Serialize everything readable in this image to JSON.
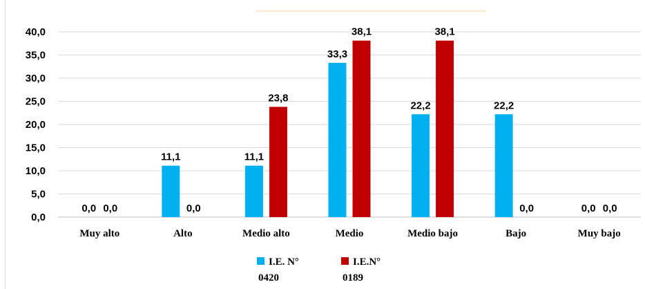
{
  "chart_data": {
    "type": "bar",
    "categories": [
      "Muy alto",
      "Alto",
      "Medio alto",
      "Medio",
      "Medio bajo",
      "Bajo",
      "Muy bajo"
    ],
    "series": [
      {
        "name": "I.E. N° 0420",
        "legend_lines": [
          "I.E. N°",
          "0420"
        ],
        "color": "#00b0f0",
        "values": [
          0.0,
          11.1,
          11.1,
          33.3,
          22.2,
          22.2,
          0.0
        ],
        "labels": [
          "0,0",
          "11,1",
          "11,1",
          "33,3",
          "22,2",
          "22,2",
          "0,0"
        ]
      },
      {
        "name": "I.E.N° 0189",
        "legend_lines": [
          "I.E.N°",
          "0189"
        ],
        "color": "#c00000",
        "values": [
          0.0,
          0.0,
          23.8,
          38.1,
          38.1,
          0.0,
          0.0
        ],
        "labels": [
          "0,0",
          "0,0",
          "23,8",
          "38,1",
          "38,1",
          "0,0",
          "0,0"
        ]
      }
    ],
    "yticks": [
      "0,0",
      "5,0",
      "10,0",
      "15,0",
      "20,0",
      "25,0",
      "30,0",
      "35,0",
      "40,0"
    ],
    "ylim": [
      0,
      40
    ],
    "ystep": 5,
    "grid": true,
    "legend_position": "bottom",
    "title": "",
    "xlabel": "",
    "ylabel": ""
  }
}
